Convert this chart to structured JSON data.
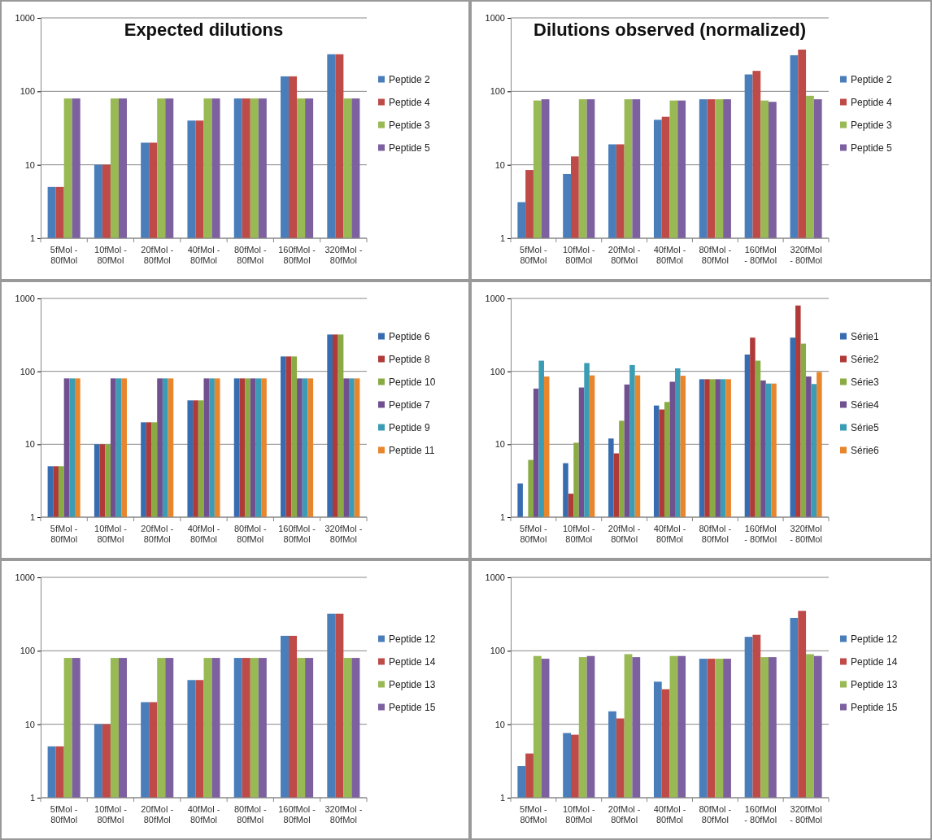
{
  "chart_data": [
    {
      "type": "bar",
      "title": "Expected dilutions",
      "log": "y",
      "grid": "y",
      "legend": "right",
      "ylim": [
        1,
        1000
      ],
      "yticks": [
        1,
        10,
        100,
        1000
      ],
      "categories": [
        "5fMol - 80fMol",
        "10fMol - 80fMol",
        "20fMol - 80fMol",
        "40fMol - 80fMol",
        "80fMol - 80fMol",
        "160fMol - 80fMol",
        "320fMol - 80fMol"
      ],
      "series": [
        {
          "name": "Peptide 2",
          "color": "#4a7ebb",
          "values": [
            5,
            10,
            20,
            40,
            80,
            160,
            320
          ]
        },
        {
          "name": "Peptide 4",
          "color": "#be4b48",
          "values": [
            5,
            10,
            20,
            40,
            80,
            160,
            320
          ]
        },
        {
          "name": "Peptide 3",
          "color": "#98b954",
          "values": [
            80,
            80,
            80,
            80,
            80,
            80,
            80
          ]
        },
        {
          "name": "Peptide 5",
          "color": "#7d60a0",
          "values": [
            80,
            80,
            80,
            80,
            80,
            80,
            80
          ]
        }
      ]
    },
    {
      "type": "bar",
      "title": "Dilutions observed (normalized)",
      "log": "y",
      "grid": "y",
      "legend": "right",
      "ylim": [
        1,
        1000
      ],
      "yticks": [
        1,
        10,
        100,
        1000
      ],
      "categories": [
        "5fMol - 80fMol",
        "10fMol - 80fMol",
        "20fMol - 80fMol",
        "40fMol - 80fMol",
        "80fMol - 80fMol",
        "160fMol - 80fMol",
        "320fMol - 80fMol"
      ],
      "series": [
        {
          "name": "Peptide 2",
          "color": "#4a7ebb",
          "values": [
            3.1,
            7.5,
            19,
            41,
            78,
            170,
            310
          ]
        },
        {
          "name": "Peptide 4",
          "color": "#be4b48",
          "values": [
            8.5,
            13,
            19,
            45,
            78,
            190,
            370
          ]
        },
        {
          "name": "Peptide 3",
          "color": "#98b954",
          "values": [
            75,
            78,
            78,
            75,
            78,
            75,
            87
          ]
        },
        {
          "name": "Peptide 5",
          "color": "#7d60a0",
          "values": [
            78,
            78,
            78,
            75,
            78,
            72,
            78
          ]
        }
      ]
    },
    {
      "type": "bar",
      "log": "y",
      "grid": "y",
      "legend": "right",
      "ylim": [
        1,
        1000
      ],
      "yticks": [
        1,
        10,
        100,
        1000
      ],
      "categories": [
        "5fMol - 80fMol",
        "10fMol - 80fMol",
        "20fMol - 80fMol",
        "40fMol - 80fMol",
        "80fMol - 80fMol",
        "160fMol - 80fMol",
        "320fMol - 80fMol"
      ],
      "series": [
        {
          "name": "Peptide 6",
          "color": "#386cb0",
          "values": [
            5,
            10,
            20,
            40,
            80,
            160,
            320
          ]
        },
        {
          "name": "Peptide 8",
          "color": "#b03a38",
          "values": [
            5,
            10,
            20,
            40,
            80,
            160,
            320
          ]
        },
        {
          "name": "Peptide 10",
          "color": "#8aab44",
          "values": [
            5,
            10,
            20,
            40,
            80,
            160,
            320
          ]
        },
        {
          "name": "Peptide 7",
          "color": "#70508f",
          "values": [
            80,
            80,
            80,
            80,
            80,
            80,
            80
          ]
        },
        {
          "name": "Peptide 9",
          "color": "#3a9cb5",
          "values": [
            80,
            80,
            80,
            80,
            80,
            80,
            80
          ]
        },
        {
          "name": "Peptide 11",
          "color": "#e8862e",
          "values": [
            80,
            80,
            80,
            80,
            80,
            80,
            80
          ]
        }
      ]
    },
    {
      "type": "bar",
      "log": "y",
      "grid": "y",
      "legend": "right",
      "ylim": [
        1,
        1000
      ],
      "yticks": [
        1,
        10,
        100,
        1000
      ],
      "categories": [
        "5fMol - 80fMol",
        "10fMol - 80fMol",
        "20fMol - 80fMol",
        "40fMol - 80fMol",
        "80fMol - 80fMol",
        "160fMol - 80fMol",
        "320fMol - 80fMol"
      ],
      "series": [
        {
          "name": "Série1",
          "color": "#386cb0",
          "values": [
            2.9,
            5.5,
            12,
            34,
            78,
            170,
            290
          ]
        },
        {
          "name": "Série2",
          "color": "#b03a38",
          "values": [
            null,
            2.1,
            7.5,
            30,
            78,
            290,
            800
          ]
        },
        {
          "name": "Série3",
          "color": "#8aab44",
          "values": [
            6.1,
            10.5,
            21,
            38,
            78,
            140,
            240
          ]
        },
        {
          "name": "Série4",
          "color": "#70508f",
          "values": [
            58,
            60,
            66,
            72,
            78,
            75,
            85
          ]
        },
        {
          "name": "Série5",
          "color": "#3a9cb5",
          "values": [
            140,
            130,
            122,
            110,
            78,
            68,
            67
          ]
        },
        {
          "name": "Série6",
          "color": "#e8862e",
          "values": [
            85,
            88,
            88,
            87,
            78,
            68,
            98
          ]
        }
      ]
    },
    {
      "type": "bar",
      "log": "y",
      "grid": "y",
      "legend": "right",
      "ylim": [
        1,
        1000
      ],
      "yticks": [
        1,
        10,
        100,
        1000
      ],
      "categories": [
        "5fMol - 80fMol",
        "10fMol - 80fMol",
        "20fMol - 80fMol",
        "40fMol - 80fMol",
        "80fMol - 80fMol",
        "160fMol - 80fMol",
        "320fMol - 80fMol"
      ],
      "series": [
        {
          "name": "Peptide 12",
          "color": "#4a7ebb",
          "values": [
            5,
            10,
            20,
            40,
            80,
            160,
            320
          ]
        },
        {
          "name": "Peptide 14",
          "color": "#be4b48",
          "values": [
            5,
            10,
            20,
            40,
            80,
            160,
            320
          ]
        },
        {
          "name": "Peptide 13",
          "color": "#98b954",
          "values": [
            80,
            80,
            80,
            80,
            80,
            80,
            80
          ]
        },
        {
          "name": "Peptide 15",
          "color": "#7d60a0",
          "values": [
            80,
            80,
            80,
            80,
            80,
            80,
            80
          ]
        }
      ]
    },
    {
      "type": "bar",
      "log": "y",
      "grid": "y",
      "legend": "right",
      "ylim": [
        1,
        1000
      ],
      "yticks": [
        1,
        10,
        100,
        1000
      ],
      "categories": [
        "5fMol - 80fMol",
        "10fMol - 80fMol",
        "20fMol - 80fMol",
        "40fMol - 80fMol",
        "80fMol - 80fMol",
        "160fMol - 80fMol",
        "320fMol - 80fMol"
      ],
      "series": [
        {
          "name": "Peptide 12",
          "color": "#4a7ebb",
          "values": [
            2.7,
            7.6,
            15,
            38,
            78,
            155,
            280
          ]
        },
        {
          "name": "Peptide 14",
          "color": "#be4b48",
          "values": [
            4,
            7.2,
            12,
            30,
            78,
            165,
            350
          ]
        },
        {
          "name": "Peptide 13",
          "color": "#98b954",
          "values": [
            85,
            82,
            90,
            85,
            78,
            82,
            90
          ]
        },
        {
          "name": "Peptide 15",
          "color": "#7d60a0",
          "values": [
            78,
            85,
            82,
            85,
            78,
            82,
            85
          ]
        }
      ]
    }
  ]
}
